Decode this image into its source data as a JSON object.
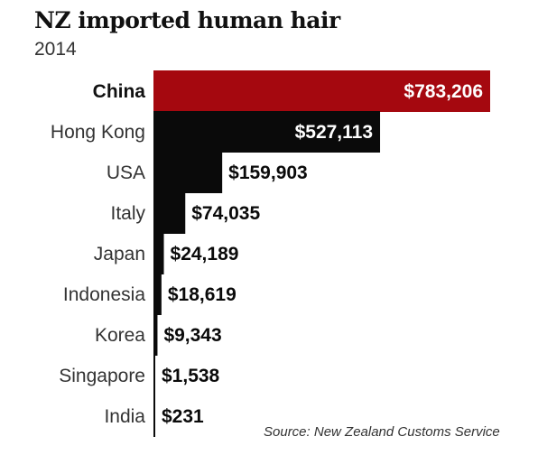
{
  "chart_data": {
    "type": "bar",
    "orientation": "horizontal",
    "title": "NZ imported human hair",
    "subtitle": "2014",
    "categories": [
      "China",
      "Hong Kong",
      "USA",
      "Italy",
      "Japan",
      "Indonesia",
      "Korea",
      "Singapore",
      "India"
    ],
    "values": [
      783206,
      527113,
      159903,
      74035,
      24189,
      18619,
      9343,
      1538,
      231
    ],
    "value_labels": [
      "$783,206",
      "$527,113",
      "$159,903",
      "$74,035",
      "$24,189",
      "$18,619",
      "$9,343",
      "$1,538",
      "$231"
    ],
    "highlight_category": "China",
    "xlim": [
      0,
      783206
    ],
    "grid": false,
    "legend": "none",
    "source": "Source: New Zealand Customs Service"
  },
  "colors": {
    "highlight_bar": "#a5080f",
    "bar": "#0a0a0a",
    "label_inside": "#ffffff",
    "label_outside": "#0a0a0a"
  }
}
